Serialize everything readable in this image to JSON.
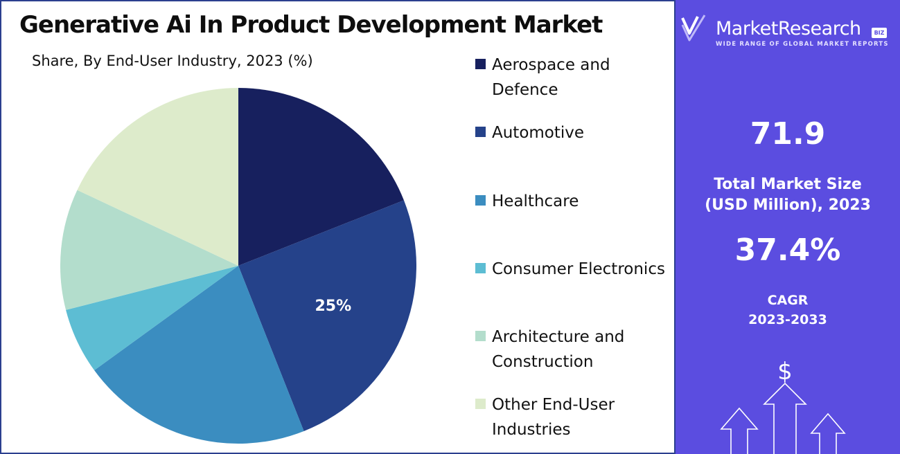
{
  "title": "Generative Ai In Product Development Market",
  "subtitle": "Share, By End-User Industry, 2023 (%)",
  "chart_data": {
    "type": "pie",
    "categories": [
      "Aerospace and Defence",
      "Automotive",
      "Healthcare",
      "Consumer Electronics",
      "Architecture and Construction",
      "Other End-User Industries"
    ],
    "values": [
      19,
      25,
      21,
      6,
      11,
      18
    ],
    "colors": [
      "#17205e",
      "#25428a",
      "#3b8dc0",
      "#5dbdd3",
      "#b3ddcc",
      "#ddebcb"
    ],
    "data_labels": [
      "",
      "25%",
      "",
      "",
      "",
      ""
    ],
    "legend_position": "right"
  },
  "legend": [
    {
      "label": "Aerospace and Defence",
      "color": "#17205e"
    },
    {
      "label": "Automotive",
      "color": "#25428a"
    },
    {
      "label": "Healthcare",
      "color": "#3b8dc0"
    },
    {
      "label": "Consumer Electronics",
      "color": "#5dbdd3"
    },
    {
      "label": "Architecture and Construction",
      "color": "#b3ddcc"
    },
    {
      "label": "Other End-User Industries",
      "color": "#ddebcb"
    }
  ],
  "sidebar": {
    "brand_name": "MarketResearch",
    "brand_badge": "BIZ",
    "brand_tagline": "WIDE RANGE OF GLOBAL MARKET REPORTS",
    "market_size_value": "71.9",
    "market_size_label_line1": "Total Market Size",
    "market_size_label_line2": "(USD Million), 2023",
    "cagr_value": "37.4%",
    "cagr_label_line1": "CAGR",
    "cagr_label_line2": "2023-2033",
    "currency_symbol": "$",
    "background_color": "#5b4de0"
  }
}
